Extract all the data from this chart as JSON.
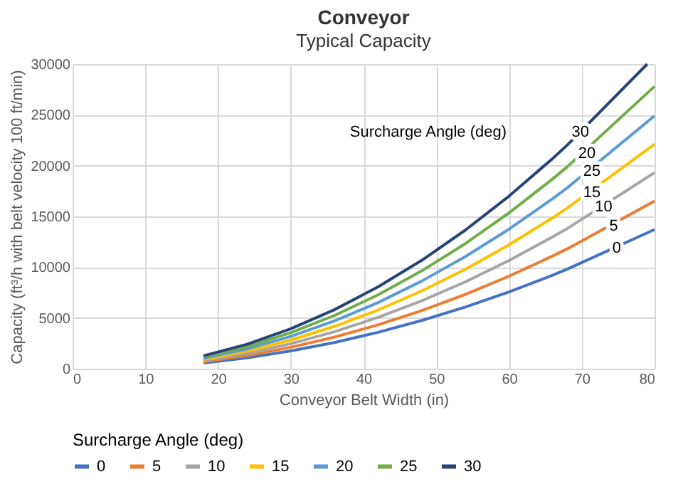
{
  "chart_data": {
    "type": "line",
    "title": "Conveyor",
    "subtitle": "Typical Capacity",
    "xlabel": "Conveyor Belt Width (in)",
    "ylabel": "Capacity (ft³/h with belt velocity 100 ft/min)",
    "legend_title": "Surcharge Angle (deg)",
    "x": [
      18,
      24,
      30,
      36,
      42,
      48,
      54,
      60,
      66,
      68,
      80
    ],
    "series": [
      {
        "name": "0",
        "color": "#4472c4",
        "values": [
          560,
          1070,
          1750,
          2580,
          3580,
          4750,
          6070,
          7560,
          9210,
          9800,
          13700
        ]
      },
      {
        "name": "5",
        "color": "#ed7d31",
        "values": [
          680,
          1290,
          2110,
          3110,
          4320,
          5720,
          7310,
          9110,
          11100,
          11800,
          16500
        ]
      },
      {
        "name": "10",
        "color": "#a5a5a5",
        "values": [
          800,
          1510,
          2460,
          3640,
          5050,
          6690,
          8550,
          10650,
          12980,
          13800,
          19300
        ]
      },
      {
        "name": "15",
        "color": "#ffc000",
        "values": [
          910,
          1730,
          2820,
          4170,
          5780,
          7660,
          9800,
          12200,
          14860,
          15810,
          22100
        ]
      },
      {
        "name": "20",
        "color": "#5b9bd5",
        "values": [
          1030,
          1950,
          3180,
          4700,
          6510,
          8630,
          11040,
          13740,
          16740,
          17810,
          24900
        ]
      },
      {
        "name": "25",
        "color": "#70ad47",
        "values": [
          1150,
          2180,
          3550,
          5240,
          7270,
          9630,
          12320,
          15340,
          18690,
          19880,
          27800
        ]
      },
      {
        "name": "30",
        "color": "#264478",
        "x": [
          18,
          24,
          30,
          36,
          42,
          48,
          54,
          60,
          66,
          68,
          79
        ],
        "values": [
          1270,
          2410,
          3930,
          5810,
          8060,
          10670,
          13650,
          16990,
          20700,
          22020,
          30000
        ]
      }
    ],
    "annotations": [
      "Surcharge Angle (deg)",
      {
        "text": "30",
        "x": 69.8,
        "y": 23260
      },
      {
        "text": "20",
        "x": 70.7,
        "y": 21190
      },
      {
        "text": "25",
        "x": 71.4,
        "y": 19450
      },
      {
        "text": "15",
        "x": 71.4,
        "y": 17290
      },
      {
        "text": "10",
        "x": 73.0,
        "y": 15920
      },
      {
        "text": "5",
        "x": 74.4,
        "y": 13990
      },
      {
        "text": "0",
        "x": 74.8,
        "y": 11880
      }
    ],
    "xlim": [
      0,
      80
    ],
    "xticks": [
      0,
      10,
      20,
      30,
      40,
      50,
      60,
      70,
      80
    ],
    "ylim": [
      0,
      30000
    ],
    "yticks": [
      0,
      5000,
      10000,
      15000,
      20000,
      25000,
      30000
    ],
    "grid": true,
    "legend": "bottom",
    "marker": "none",
    "line_style": "solid"
  }
}
